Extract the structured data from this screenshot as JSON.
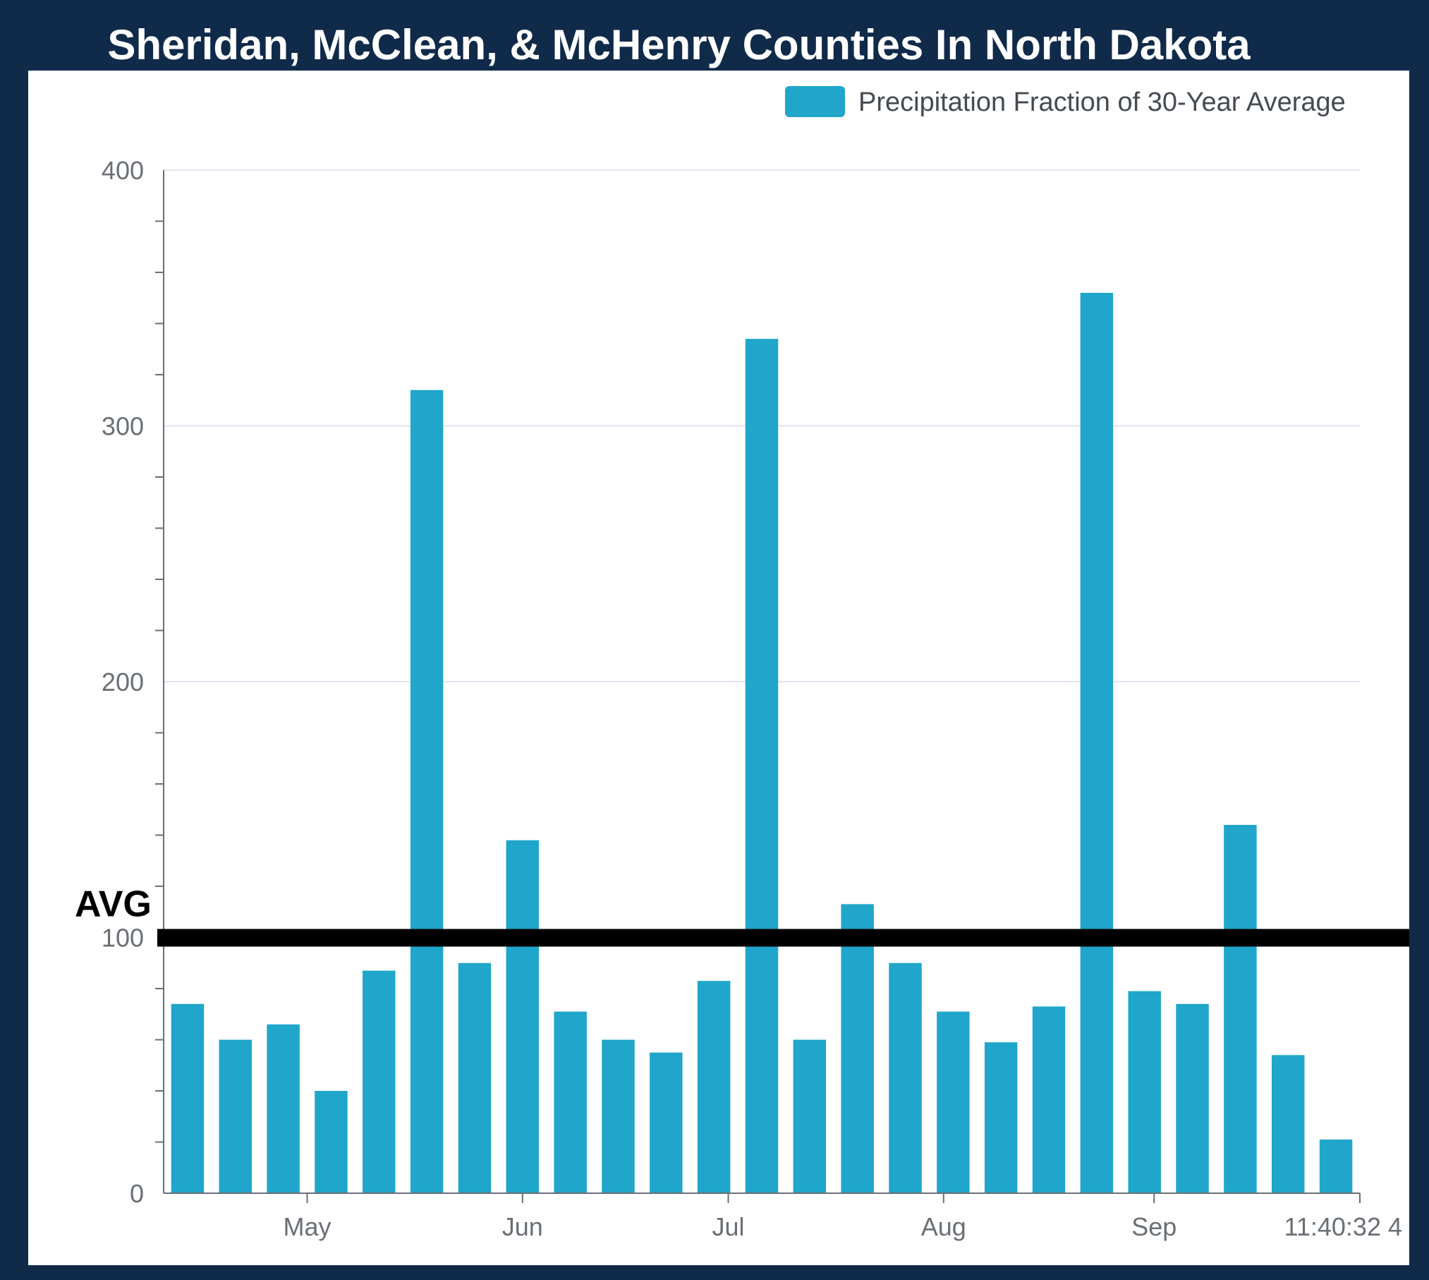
{
  "title": "Sheridan, McClean, & McHenry Counties In North Dakota",
  "colors": {
    "background": "#102a4a",
    "panel": "#ffffff",
    "bar": "#20a6ca",
    "gridline": "#dfe6ef",
    "axis": "#6a6f76",
    "reference_line": "#000000"
  },
  "chart_data": {
    "type": "bar",
    "legend": {
      "label": "Precipitation Fraction of 30-Year Average",
      "placement": "top-right"
    },
    "series": [
      {
        "name": "Precipitation Fraction of 30-Year Average",
        "values": [
          74,
          60,
          66,
          40,
          87,
          314,
          90,
          138,
          71,
          60,
          55,
          83,
          334,
          60,
          113,
          90,
          71,
          59,
          73,
          352,
          79,
          74,
          144,
          54,
          21
        ]
      }
    ],
    "ylim": [
      0,
      400
    ],
    "y_ticks": [
      "0",
      "100",
      "200",
      "300",
      "400"
    ],
    "y_minor_step": 20,
    "x_tick_labels": [
      {
        "label": "May",
        "after_bar": 3
      },
      {
        "label": "Jun",
        "after_bar": 7.5
      },
      {
        "label": "Jul",
        "after_bar": 11.8
      },
      {
        "label": "Aug",
        "after_bar": 16.3
      },
      {
        "label": "Sep",
        "after_bar": 20.7
      },
      {
        "label": "11:40:32 4",
        "after_bar": 25
      }
    ],
    "grid": true,
    "reference_line": {
      "label": "AVG",
      "value": 100
    }
  }
}
